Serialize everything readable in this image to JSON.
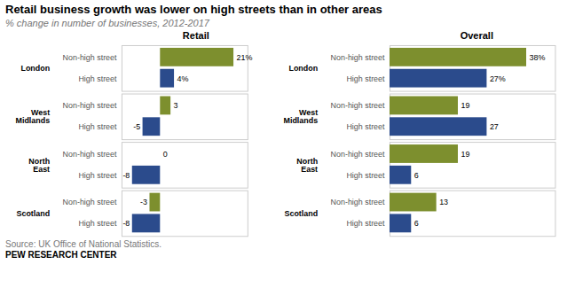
{
  "title": "Retail business growth was lower on high streets than in other areas",
  "subtitle": "% change in number of businesses, 2012-2017",
  "annotations": [
    "Source: UK Office of National Statistics.",
    "PEW RESEARCH CENTER"
  ],
  "chart_data": [
    {
      "type": "bar",
      "title": "Retail",
      "orientation": "horizontal",
      "categories": [
        "London",
        "West\nMidlands",
        "North\nEast",
        "Scotland"
      ],
      "series": [
        {
          "name": "Non-high street",
          "color": "#7d8f2e",
          "values": [
            21,
            3,
            0,
            -3
          ],
          "value_labels": [
            "21%",
            "3",
            "0",
            "-3"
          ]
        },
        {
          "name": "High street",
          "color": "#2b4b8c",
          "values": [
            4,
            -5,
            -8,
            -8
          ],
          "value_labels": [
            "4%",
            "-5",
            "-8",
            "-8"
          ]
        }
      ],
      "xlim": [
        -11,
        25
      ],
      "data_labels": true,
      "tick_labels": "y",
      "grid": false
    },
    {
      "type": "bar",
      "title": "Overall",
      "orientation": "horizontal",
      "categories": [
        "London",
        "West\nMidlands",
        "North\nEast",
        "Scotland"
      ],
      "series": [
        {
          "name": "Non-high street",
          "color": "#7d8f2e",
          "values": [
            38,
            19,
            19,
            13
          ],
          "value_labels": [
            "38%",
            "19",
            "19",
            "13"
          ]
        },
        {
          "name": "High street",
          "color": "#2b4b8c",
          "values": [
            27,
            27,
            6,
            6
          ],
          "value_labels": [
            "27%",
            "27",
            "6",
            "6"
          ]
        }
      ],
      "xlim": [
        0,
        46
      ],
      "data_labels": true,
      "tick_labels": "y",
      "grid": false
    }
  ]
}
